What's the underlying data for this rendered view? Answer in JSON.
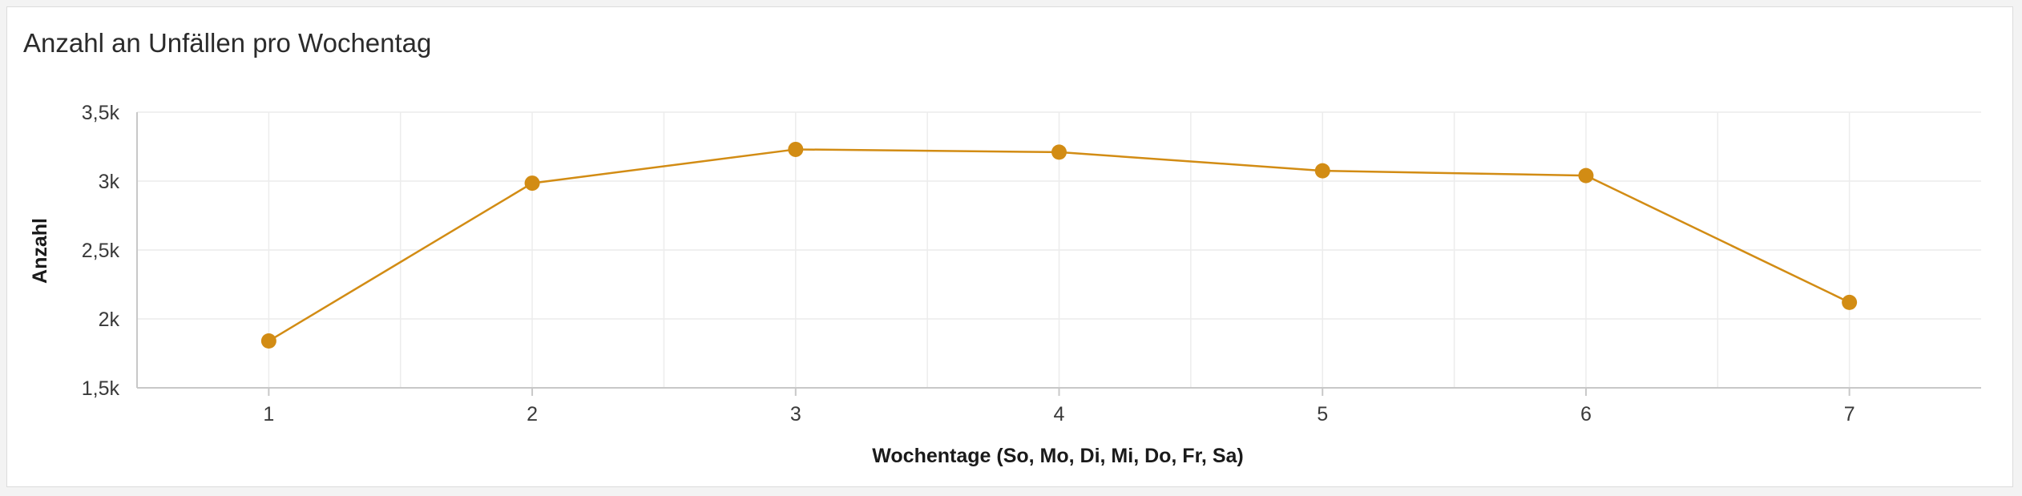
{
  "chart_data": {
    "type": "line",
    "title": "Anzahl an Unfällen pro Wochentag",
    "xlabel": "Wochentage (So, Mo, Di, Mi, Do, Fr, Sa)",
    "ylabel": "Anzahl",
    "x": [
      1,
      2,
      3,
      4,
      5,
      6,
      7
    ],
    "x_tick_labels": [
      "1",
      "2",
      "3",
      "4",
      "5",
      "6",
      "7"
    ],
    "series": [
      {
        "values": [
          1840,
          2985,
          3230,
          3210,
          3075,
          3040,
          2120
        ],
        "color": "#d28c14"
      }
    ],
    "xlim": [
      0.5,
      7.5
    ],
    "ylim": [
      1500,
      3500
    ],
    "y_ticks": [
      1500,
      2000,
      2500,
      3000,
      3500
    ],
    "y_tick_labels": [
      "1,5k",
      "2k",
      "2,5k",
      "3k",
      "3,5k"
    ],
    "grid": true,
    "colors": {
      "line": "#d28c14",
      "grid": "#ececec",
      "axis": "#c8c8c8"
    }
  }
}
